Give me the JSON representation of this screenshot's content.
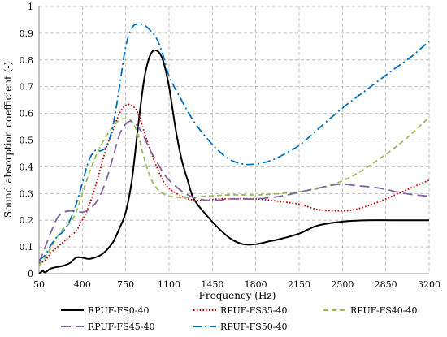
{
  "chart_data": {
    "type": "line",
    "title": "",
    "xlabel": "Frequency (Hz)",
    "ylabel": "Sound absorption coefficient (-)",
    "xlim": [
      50,
      3200
    ],
    "ylim": [
      0,
      1
    ],
    "x_ticks": [
      50,
      400,
      750,
      1100,
      1450,
      1800,
      2150,
      2500,
      2850,
      3200
    ],
    "y_ticks": [
      0,
      0.1,
      0.2,
      0.3,
      0.4,
      0.5,
      0.6,
      0.7,
      0.8,
      0.9,
      1
    ],
    "grid": true,
    "legend_position": "bottom",
    "series": [
      {
        "name": "RPUF-FS0-40",
        "color": "#000000",
        "dash": "solid",
        "points": [
          [
            50,
            0.0
          ],
          [
            80,
            0.01
          ],
          [
            100,
            0.005
          ],
          [
            150,
            0.02
          ],
          [
            250,
            0.03
          ],
          [
            300,
            0.04
          ],
          [
            350,
            0.06
          ],
          [
            400,
            0.06
          ],
          [
            450,
            0.055
          ],
          [
            500,
            0.06
          ],
          [
            550,
            0.07
          ],
          [
            600,
            0.09
          ],
          [
            650,
            0.12
          ],
          [
            700,
            0.17
          ],
          [
            750,
            0.23
          ],
          [
            800,
            0.35
          ],
          [
            850,
            0.55
          ],
          [
            900,
            0.73
          ],
          [
            950,
            0.82
          ],
          [
            1000,
            0.835
          ],
          [
            1050,
            0.8
          ],
          [
            1100,
            0.7
          ],
          [
            1150,
            0.55
          ],
          [
            1200,
            0.43
          ],
          [
            1250,
            0.35
          ],
          [
            1300,
            0.28
          ],
          [
            1400,
            0.22
          ],
          [
            1500,
            0.17
          ],
          [
            1600,
            0.13
          ],
          [
            1700,
            0.11
          ],
          [
            1800,
            0.11
          ],
          [
            1900,
            0.12
          ],
          [
            2000,
            0.13
          ],
          [
            2150,
            0.15
          ],
          [
            2300,
            0.18
          ],
          [
            2500,
            0.195
          ],
          [
            2700,
            0.2
          ],
          [
            2900,
            0.2
          ],
          [
            3200,
            0.2
          ]
        ]
      },
      {
        "name": "RPUF-FS35-40",
        "color": "#c00000",
        "dash": "dotted",
        "points": [
          [
            50,
            0.04
          ],
          [
            100,
            0.05
          ],
          [
            150,
            0.08
          ],
          [
            200,
            0.1
          ],
          [
            250,
            0.12
          ],
          [
            300,
            0.14
          ],
          [
            350,
            0.16
          ],
          [
            400,
            0.2
          ],
          [
            450,
            0.25
          ],
          [
            500,
            0.32
          ],
          [
            550,
            0.4
          ],
          [
            600,
            0.48
          ],
          [
            650,
            0.54
          ],
          [
            700,
            0.6
          ],
          [
            750,
            0.63
          ],
          [
            800,
            0.63
          ],
          [
            850,
            0.6
          ],
          [
            900,
            0.53
          ],
          [
            950,
            0.46
          ],
          [
            1000,
            0.4
          ],
          [
            1050,
            0.35
          ],
          [
            1100,
            0.32
          ],
          [
            1200,
            0.29
          ],
          [
            1300,
            0.275
          ],
          [
            1400,
            0.275
          ],
          [
            1500,
            0.28
          ],
          [
            1600,
            0.28
          ],
          [
            1800,
            0.28
          ],
          [
            2000,
            0.27
          ],
          [
            2150,
            0.26
          ],
          [
            2300,
            0.24
          ],
          [
            2450,
            0.235
          ],
          [
            2600,
            0.24
          ],
          [
            2800,
            0.27
          ],
          [
            3000,
            0.31
          ],
          [
            3200,
            0.35
          ]
        ]
      },
      {
        "name": "RPUF-FS40-40",
        "color": "#9bbb59",
        "dash": "dashed",
        "points": [
          [
            50,
            0.03
          ],
          [
            100,
            0.06
          ],
          [
            150,
            0.1
          ],
          [
            200,
            0.14
          ],
          [
            250,
            0.17
          ],
          [
            300,
            0.19
          ],
          [
            350,
            0.23
          ],
          [
            400,
            0.3
          ],
          [
            450,
            0.37
          ],
          [
            500,
            0.43
          ],
          [
            550,
            0.48
          ],
          [
            600,
            0.52
          ],
          [
            650,
            0.55
          ],
          [
            700,
            0.575
          ],
          [
            750,
            0.58
          ],
          [
            800,
            0.57
          ],
          [
            850,
            0.52
          ],
          [
            900,
            0.43
          ],
          [
            950,
            0.36
          ],
          [
            1000,
            0.32
          ],
          [
            1050,
            0.3
          ],
          [
            1100,
            0.29
          ],
          [
            1200,
            0.285
          ],
          [
            1300,
            0.285
          ],
          [
            1400,
            0.29
          ],
          [
            1600,
            0.295
          ],
          [
            1800,
            0.295
          ],
          [
            2000,
            0.3
          ],
          [
            2200,
            0.31
          ],
          [
            2400,
            0.33
          ],
          [
            2600,
            0.37
          ],
          [
            2800,
            0.43
          ],
          [
            3000,
            0.5
          ],
          [
            3200,
            0.585
          ]
        ]
      },
      {
        "name": "RPUF-FS45-40",
        "color": "#8064a2",
        "dash": "longdash",
        "points": [
          [
            50,
            0.04
          ],
          [
            100,
            0.1
          ],
          [
            150,
            0.16
          ],
          [
            200,
            0.21
          ],
          [
            250,
            0.23
          ],
          [
            300,
            0.235
          ],
          [
            350,
            0.235
          ],
          [
            400,
            0.23
          ],
          [
            450,
            0.24
          ],
          [
            500,
            0.26
          ],
          [
            550,
            0.3
          ],
          [
            600,
            0.36
          ],
          [
            650,
            0.44
          ],
          [
            700,
            0.52
          ],
          [
            750,
            0.56
          ],
          [
            800,
            0.57
          ],
          [
            850,
            0.55
          ],
          [
            900,
            0.51
          ],
          [
            950,
            0.46
          ],
          [
            1000,
            0.42
          ],
          [
            1050,
            0.38
          ],
          [
            1100,
            0.35
          ],
          [
            1200,
            0.31
          ],
          [
            1300,
            0.285
          ],
          [
            1400,
            0.275
          ],
          [
            1500,
            0.275
          ],
          [
            1600,
            0.28
          ],
          [
            1800,
            0.28
          ],
          [
            2000,
            0.29
          ],
          [
            2200,
            0.31
          ],
          [
            2400,
            0.33
          ],
          [
            2500,
            0.335
          ],
          [
            2600,
            0.33
          ],
          [
            2800,
            0.32
          ],
          [
            3000,
            0.3
          ],
          [
            3200,
            0.29
          ]
        ]
      },
      {
        "name": "RPUF-FS50-40",
        "color": "#0070c0",
        "dash": "dashdot",
        "points": [
          [
            50,
            0.05
          ],
          [
            100,
            0.07
          ],
          [
            150,
            0.11
          ],
          [
            200,
            0.14
          ],
          [
            250,
            0.16
          ],
          [
            300,
            0.2
          ],
          [
            350,
            0.26
          ],
          [
            400,
            0.34
          ],
          [
            450,
            0.42
          ],
          [
            500,
            0.46
          ],
          [
            550,
            0.46
          ],
          [
            600,
            0.48
          ],
          [
            650,
            0.56
          ],
          [
            700,
            0.7
          ],
          [
            750,
            0.85
          ],
          [
            800,
            0.92
          ],
          [
            850,
            0.935
          ],
          [
            900,
            0.93
          ],
          [
            950,
            0.91
          ],
          [
            1000,
            0.88
          ],
          [
            1050,
            0.82
          ],
          [
            1100,
            0.74
          ],
          [
            1200,
            0.65
          ],
          [
            1300,
            0.57
          ],
          [
            1400,
            0.51
          ],
          [
            1500,
            0.46
          ],
          [
            1600,
            0.425
          ],
          [
            1700,
            0.41
          ],
          [
            1800,
            0.41
          ],
          [
            1900,
            0.42
          ],
          [
            2000,
            0.44
          ],
          [
            2150,
            0.48
          ],
          [
            2300,
            0.54
          ],
          [
            2500,
            0.62
          ],
          [
            2700,
            0.69
          ],
          [
            2900,
            0.76
          ],
          [
            3050,
            0.81
          ],
          [
            3200,
            0.87
          ]
        ]
      }
    ]
  }
}
